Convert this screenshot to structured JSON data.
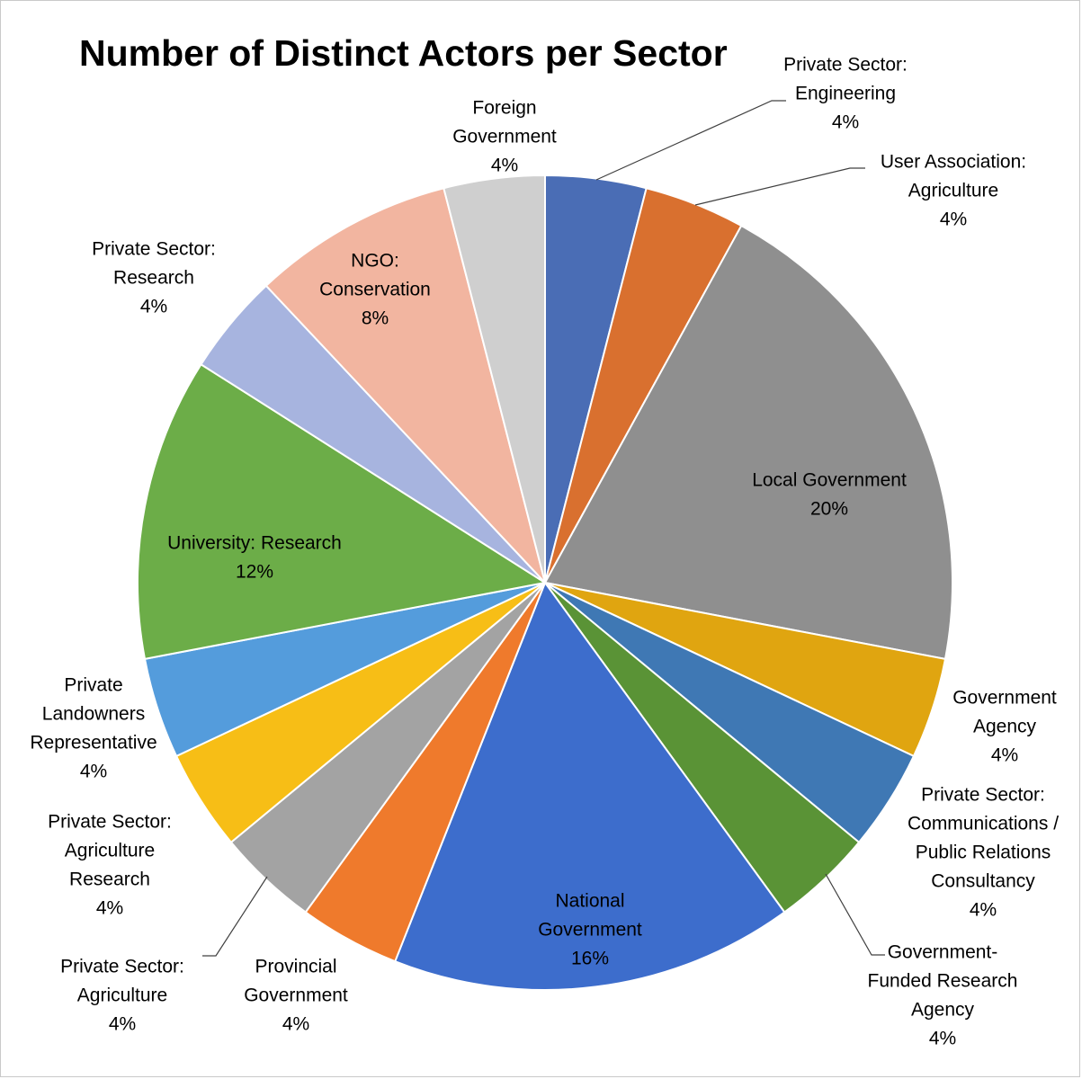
{
  "chart_data": {
    "type": "pie",
    "title": "Number of Distinct Actors per Sector",
    "slices": [
      {
        "lines": [
          "Private Sector:",
          "Engineering"
        ],
        "value": 4,
        "pct": "4%",
        "color": "#4a6db5"
      },
      {
        "lines": [
          "User Association:",
          "Agriculture"
        ],
        "value": 4,
        "pct": "4%",
        "color": "#d9702f"
      },
      {
        "lines": [
          "Local Government"
        ],
        "value": 20,
        "pct": "20%",
        "color": "#8f8f8f"
      },
      {
        "lines": [
          "Government",
          "Agency"
        ],
        "value": 4,
        "pct": "4%",
        "color": "#e0a510"
      },
      {
        "lines": [
          "Private Sector:",
          "Communications /",
          "Public Relations",
          "Consultancy"
        ],
        "value": 4,
        "pct": "4%",
        "color": "#3f78b4"
      },
      {
        "lines": [
          "Government-",
          "Funded Research",
          "Agency"
        ],
        "value": 4,
        "pct": "4%",
        "color": "#5a9336"
      },
      {
        "lines": [
          "National",
          "Government"
        ],
        "value": 16,
        "pct": "16%",
        "color": "#3d6dcc"
      },
      {
        "lines": [
          "Provincial",
          "Government"
        ],
        "value": 4,
        "pct": "4%",
        "color": "#ef7a2c"
      },
      {
        "lines": [
          "Private Sector:",
          "Agriculture"
        ],
        "value": 4,
        "pct": "4%",
        "color": "#a3a3a3"
      },
      {
        "lines": [
          "Private Sector:",
          "Agriculture",
          "Research"
        ],
        "value": 4,
        "pct": "4%",
        "color": "#f7be16"
      },
      {
        "lines": [
          "Private",
          "Landowners",
          "Representative"
        ],
        "value": 4,
        "pct": "4%",
        "color": "#549cdc"
      },
      {
        "lines": [
          "University: Research"
        ],
        "value": 12,
        "pct": "12%",
        "color": "#6cad48"
      },
      {
        "lines": [
          "Private Sector:",
          "Research"
        ],
        "value": 4,
        "pct": "4%",
        "color": "#a7b4df"
      },
      {
        "lines": [
          "NGO:",
          "Conservation"
        ],
        "value": 8,
        "pct": "8%",
        "color": "#f2b5a0"
      },
      {
        "lines": [
          "Foreign",
          "Government"
        ],
        "value": 4,
        "pct": "4%",
        "color": "#cfcfcf"
      }
    ]
  }
}
